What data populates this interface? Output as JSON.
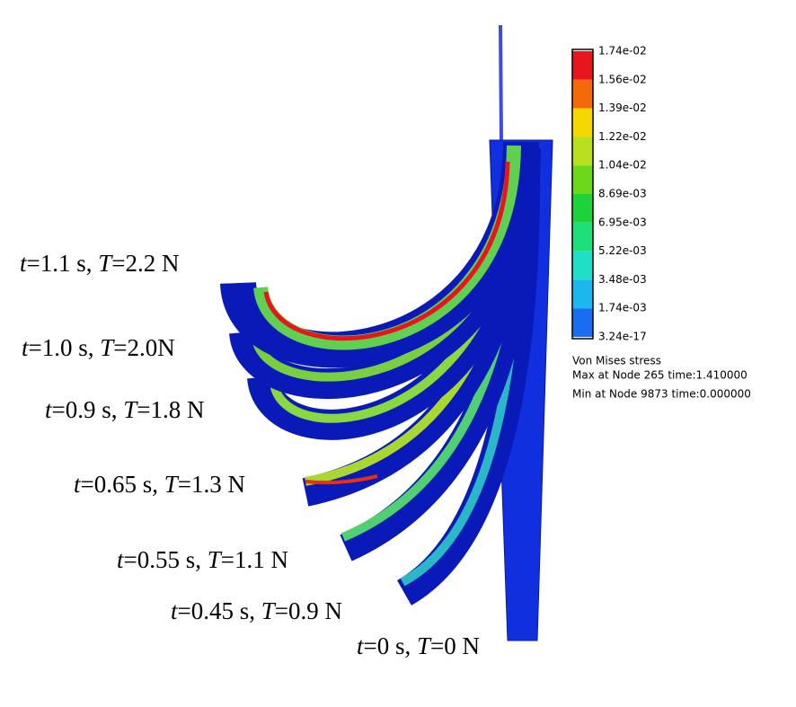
{
  "legend": {
    "ticks": [
      "1.74e-02",
      "1.56e-02",
      "1.39e-02",
      "1.22e-02",
      "1.04e-02",
      "8.69e-03",
      "6.95e-03",
      "5.22e-03",
      "3.48e-03",
      "1.74e-03",
      "3.24e-17"
    ],
    "colors": [
      "#e8141e",
      "#f46a0a",
      "#f5d800",
      "#b8e01e",
      "#6cd81c",
      "#1ed23c",
      "#1ee07a",
      "#1ee0c8",
      "#1ab8ee",
      "#1a6cf0",
      "#0a1ef0"
    ],
    "title": "Von Mises stress",
    "max": "Max at Node 265 time:1.410000",
    "min": "Min at Node 9873 time:0.000000"
  },
  "labels": [
    [
      "t",
      "=1.1 s, ",
      "T",
      "=2.2 N"
    ],
    [
      "t",
      "=1.0 s, ",
      "T",
      "=2.0N"
    ],
    [
      "t",
      "=0.9 s, ",
      "T",
      "=1.8 N"
    ],
    [
      "t",
      "=0.65 s, ",
      "T",
      "=1.3 N"
    ],
    [
      "t",
      "=0.55 s, ",
      "T",
      "=1.1 N"
    ],
    [
      "t",
      "=0.45 s, ",
      "T",
      "=0.9 N"
    ],
    [
      "t",
      "=0 s, ",
      "T",
      "=0 N"
    ]
  ]
}
